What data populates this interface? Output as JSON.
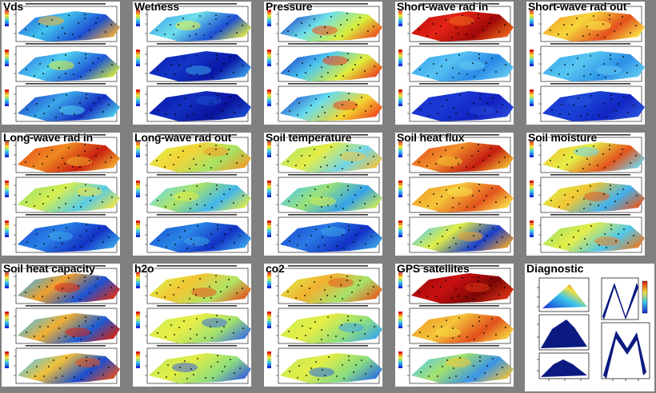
{
  "grid": {
    "tiles": [
      {
        "id": "vds",
        "title": "Vds",
        "maps": [
          [
            "#2a6fdc",
            "#3fc2ee",
            "#1c4fd2",
            "#f6b030"
          ],
          [
            "#2f7ae4",
            "#4fd0f0",
            "#1e56d6",
            "#d9ee3a"
          ],
          [
            "#1d40cc",
            "#3aa8ea",
            "#152fc0",
            "#52d3ee"
          ]
        ]
      },
      {
        "id": "wetness",
        "title": "Wetness",
        "maps": [
          [
            "#3da6ea",
            "#6ee0ec",
            "#1a4ed2",
            "#e8f040"
          ],
          [
            "#0e22b8",
            "#1336c6",
            "#0a16a6",
            "#3aa0ea"
          ],
          [
            "#0c18ae",
            "#1230c0",
            "#0a129c",
            "#1a4ed2"
          ]
        ]
      },
      {
        "id": "pressure",
        "title": "Pressure",
        "maps": [
          [
            "#1a3ec8",
            "#6fe0ea",
            "#d8ef3c",
            "#ef4a1c"
          ],
          [
            "#1a3ec8",
            "#4fc8f0",
            "#e0ee3c",
            "#ee3e1c"
          ],
          [
            "#1e4ace",
            "#66dcee",
            "#f2d830",
            "#f0441e"
          ]
        ]
      },
      {
        "id": "sw-in",
        "title": "Short-wave rad in",
        "maps": [
          [
            "#c41010",
            "#e42414",
            "#a00808",
            "#ee6a1a"
          ],
          [
            "#3aa6ee",
            "#56c2f2",
            "#2a8ae8",
            "#66ccf0"
          ],
          [
            "#1a2ed0",
            "#1a3ad4",
            "#1222c2",
            "#2848d8"
          ]
        ]
      },
      {
        "id": "sw-out",
        "title": "Short-wave rad out",
        "maps": [
          [
            "#f0a428",
            "#f6d43a",
            "#e4501c",
            "#fbe648"
          ],
          [
            "#3aa8ee",
            "#56c6f0",
            "#2c90e8",
            "#62ccf0"
          ],
          [
            "#1a34d0",
            "#1a44d6",
            "#1226c4",
            "#2a54da"
          ]
        ]
      },
      {
        "id": "lw-in",
        "title": "Long-wave rad in",
        "maps": [
          [
            "#e6541c",
            "#f08a22",
            "#c82010",
            "#f4b02c"
          ],
          [
            "#9ee070",
            "#d6ee50",
            "#58cce6",
            "#f2e444"
          ],
          [
            "#1a54d6",
            "#2a82e6",
            "#1232c6",
            "#3aa6ea"
          ]
        ]
      },
      {
        "id": "lw-out",
        "title": "Long-wave rad out",
        "maps": [
          [
            "#e2ee46",
            "#f4d438",
            "#a6e262",
            "#f09c28"
          ],
          [
            "#6ad8ee",
            "#aee466",
            "#40b6ee",
            "#e2ec46"
          ],
          [
            "#1a56d6",
            "#2a86e6",
            "#1232c6",
            "#3aa6ea"
          ]
        ]
      },
      {
        "id": "soil-temp",
        "title": "Soil temperature",
        "maps": [
          [
            "#b0e464",
            "#e6ee46",
            "#70d6ea",
            "#f4c43a"
          ],
          [
            "#52c6ee",
            "#9ae278",
            "#34a2ea",
            "#d0ec50"
          ],
          [
            "#1a4cd2",
            "#2a7ae4",
            "#1230c6",
            "#3aa8ea"
          ]
        ]
      },
      {
        "id": "soil-heat-flux",
        "title": "Soil heat flux",
        "maps": [
          [
            "#e6541c",
            "#f0922a",
            "#c41c10",
            "#f4c030"
          ],
          [
            "#f09c28",
            "#f4c43a",
            "#e4541c",
            "#f8e24a"
          ],
          [
            "#56cbee",
            "#e2ee46",
            "#1a3ecc",
            "#f0a42a"
          ]
        ]
      },
      {
        "id": "soil-moisture",
        "title": "Soil moisture",
        "maps": [
          [
            "#f2c634",
            "#e4ee46",
            "#e4541c",
            "#6ed6ee"
          ],
          [
            "#dcee48",
            "#f2c634",
            "#40b2ee",
            "#e85a1e"
          ],
          [
            "#9ee070",
            "#e6ee46",
            "#4ec8ee",
            "#ee7a22"
          ]
        ]
      },
      {
        "id": "soil-heat-cap",
        "title": "Soil heat capacity",
        "maps": [
          [
            "#3ab0ee",
            "#f0a02a",
            "#1a52d4",
            "#e22c14"
          ],
          [
            "#46bcee",
            "#f2b030",
            "#1a5cd6",
            "#d82010"
          ],
          [
            "#56c8ee",
            "#f2c038",
            "#1a4ed2",
            "#e4501c"
          ]
        ]
      },
      {
        "id": "h2o",
        "title": "h2o",
        "maps": [
          [
            "#dcee48",
            "#f2c634",
            "#b0e464",
            "#e4541c"
          ],
          [
            "#d0ec4e",
            "#e8ee46",
            "#9ee070",
            "#3a6ee2"
          ],
          [
            "#c6ea56",
            "#e2ee46",
            "#8ede7c",
            "#3a5ede"
          ]
        ]
      },
      {
        "id": "co2",
        "title": "co2",
        "maps": [
          [
            "#dcee48",
            "#f2b030",
            "#a6e26a",
            "#e85a1e"
          ],
          [
            "#ccec52",
            "#e6ee46",
            "#8ede7c",
            "#3aa6ea"
          ],
          [
            "#c6ea56",
            "#e2ee46",
            "#86dc82",
            "#2a6ee2"
          ]
        ]
      },
      {
        "id": "gps",
        "title": "GPS satellites",
        "maps": [
          [
            "#a00808",
            "#c81010",
            "#7a0606",
            "#e23416"
          ],
          [
            "#f09c28",
            "#f4c43a",
            "#e2501c",
            "#f6d83e"
          ],
          [
            "#5ac8ee",
            "#a6e26a",
            "#3a94e8",
            "#f2c438"
          ]
        ]
      }
    ]
  },
  "diagnostic": {
    "title": "Diagnostic"
  }
}
